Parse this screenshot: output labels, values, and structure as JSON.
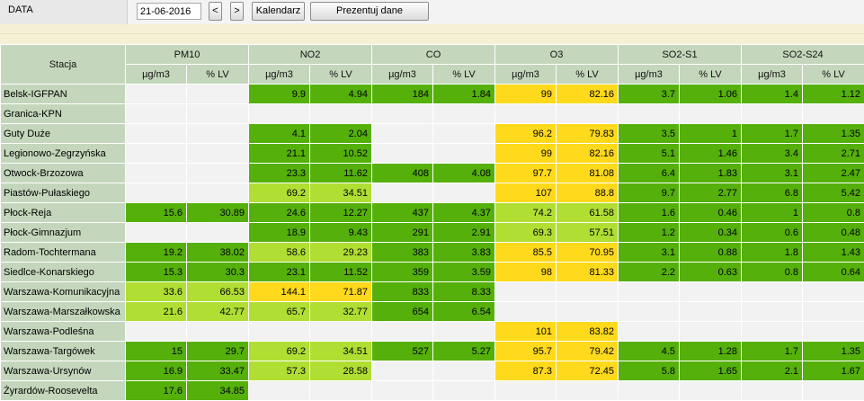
{
  "toolbar": {
    "label": "DATA",
    "date_value": "21-06-2016",
    "prev_label": "<",
    "next_label": ">",
    "calendar_label": "Kalendarz",
    "show_label": "Prezentuj dane"
  },
  "table": {
    "station_header": "Stacja",
    "pollutants": [
      "PM10",
      "NO2",
      "CO",
      "O3",
      "SO2-S1",
      "SO2-S24"
    ],
    "unit_headers": [
      "µg/m3",
      "% LV"
    ],
    "level_colors": {
      "none": "#f2f2f2",
      "very_good": "#55b00b",
      "good": "#b0de33",
      "moderate": "#ffd91b"
    },
    "rows": [
      {
        "station": "Belsk-IGFPAN",
        "values": [
          [
            "",
            ""
          ],
          [
            "9.9",
            "4.94"
          ],
          [
            "184",
            "1.84"
          ],
          [
            "99",
            "82.16"
          ],
          [
            "3.7",
            "1.06"
          ],
          [
            "1.4",
            "1.12"
          ]
        ],
        "levels": [
          0,
          1,
          1,
          3,
          1,
          1
        ]
      },
      {
        "station": "Granica-KPN",
        "values": [
          [
            "",
            ""
          ],
          [
            "",
            ""
          ],
          [
            "",
            ""
          ],
          [
            "",
            ""
          ],
          [
            "",
            ""
          ],
          [
            "",
            ""
          ]
        ],
        "levels": [
          0,
          0,
          0,
          0,
          0,
          0
        ]
      },
      {
        "station": "Guty Duże",
        "values": [
          [
            "",
            ""
          ],
          [
            "4.1",
            "2.04"
          ],
          [
            "",
            ""
          ],
          [
            "96.2",
            "79.83"
          ],
          [
            "3.5",
            "1"
          ],
          [
            "1.7",
            "1.35"
          ]
        ],
        "levels": [
          0,
          1,
          0,
          3,
          1,
          1
        ]
      },
      {
        "station": "Legionowo-Zegrzyńska",
        "values": [
          [
            "",
            ""
          ],
          [
            "21.1",
            "10.52"
          ],
          [
            "",
            ""
          ],
          [
            "99",
            "82.16"
          ],
          [
            "5.1",
            "1.46"
          ],
          [
            "3.4",
            "2.71"
          ]
        ],
        "levels": [
          0,
          1,
          0,
          3,
          1,
          1
        ]
      },
      {
        "station": "Otwock-Brzozowa",
        "values": [
          [
            "",
            ""
          ],
          [
            "23.3",
            "11.62"
          ],
          [
            "408",
            "4.08"
          ],
          [
            "97.7",
            "81.08"
          ],
          [
            "6.4",
            "1.83"
          ],
          [
            "3.1",
            "2.47"
          ]
        ],
        "levels": [
          0,
          1,
          1,
          3,
          1,
          1
        ]
      },
      {
        "station": "Piastów-Pułaskiego",
        "values": [
          [
            "",
            ""
          ],
          [
            "69.2",
            "34.51"
          ],
          [
            "",
            ""
          ],
          [
            "107",
            "88.8"
          ],
          [
            "9.7",
            "2.77"
          ],
          [
            "6.8",
            "5.42"
          ]
        ],
        "levels": [
          0,
          2,
          0,
          3,
          1,
          1
        ]
      },
      {
        "station": "Płock-Reja",
        "values": [
          [
            "15.6",
            "30.89"
          ],
          [
            "24.6",
            "12.27"
          ],
          [
            "437",
            "4.37"
          ],
          [
            "74.2",
            "61.58"
          ],
          [
            "1.6",
            "0.46"
          ],
          [
            "1",
            "0.8"
          ]
        ],
        "levels": [
          1,
          1,
          1,
          2,
          1,
          1
        ]
      },
      {
        "station": "Płock-Gimnazjum",
        "values": [
          [
            "",
            ""
          ],
          [
            "18.9",
            "9.43"
          ],
          [
            "291",
            "2.91"
          ],
          [
            "69.3",
            "57.51"
          ],
          [
            "1.2",
            "0.34"
          ],
          [
            "0.6",
            "0.48"
          ]
        ],
        "levels": [
          0,
          1,
          1,
          2,
          1,
          1
        ]
      },
      {
        "station": "Radom-Tochtermana",
        "values": [
          [
            "19.2",
            "38.02"
          ],
          [
            "58.6",
            "29.23"
          ],
          [
            "383",
            "3.83"
          ],
          [
            "85.5",
            "70.95"
          ],
          [
            "3.1",
            "0.88"
          ],
          [
            "1.8",
            "1.43"
          ]
        ],
        "levels": [
          1,
          2,
          1,
          3,
          1,
          1
        ]
      },
      {
        "station": "Siedlce-Konarskiego",
        "values": [
          [
            "15.3",
            "30.3"
          ],
          [
            "23.1",
            "11.52"
          ],
          [
            "359",
            "3.59"
          ],
          [
            "98",
            "81.33"
          ],
          [
            "2.2",
            "0.63"
          ],
          [
            "0.8",
            "0.64"
          ]
        ],
        "levels": [
          1,
          1,
          1,
          3,
          1,
          1
        ]
      },
      {
        "station": "Warszawa-Komunikacyjna",
        "values": [
          [
            "33.6",
            "66.53"
          ],
          [
            "144.1",
            "71.87"
          ],
          [
            "833",
            "8.33"
          ],
          [
            "",
            ""
          ],
          [
            "",
            ""
          ],
          [
            "",
            ""
          ]
        ],
        "levels": [
          2,
          3,
          1,
          0,
          0,
          0
        ]
      },
      {
        "station": "Warszawa-Marszałkowska",
        "values": [
          [
            "21.6",
            "42.77"
          ],
          [
            "65.7",
            "32.77"
          ],
          [
            "654",
            "6.54"
          ],
          [
            "",
            ""
          ],
          [
            "",
            ""
          ],
          [
            "",
            ""
          ]
        ],
        "levels": [
          2,
          2,
          1,
          0,
          0,
          0
        ]
      },
      {
        "station": "Warszawa-Podleśna",
        "values": [
          [
            "",
            ""
          ],
          [
            "",
            ""
          ],
          [
            "",
            ""
          ],
          [
            "101",
            "83.82"
          ],
          [
            "",
            ""
          ],
          [
            "",
            ""
          ]
        ],
        "levels": [
          0,
          0,
          0,
          3,
          0,
          0
        ]
      },
      {
        "station": "Warszawa-Targówek",
        "values": [
          [
            "15",
            "29.7"
          ],
          [
            "69.2",
            "34.51"
          ],
          [
            "527",
            "5.27"
          ],
          [
            "95.7",
            "79.42"
          ],
          [
            "4.5",
            "1.28"
          ],
          [
            "1.7",
            "1.35"
          ]
        ],
        "levels": [
          1,
          2,
          1,
          3,
          1,
          1
        ]
      },
      {
        "station": "Warszawa-Ursynów",
        "values": [
          [
            "16.9",
            "33.47"
          ],
          [
            "57.3",
            "28.58"
          ],
          [
            "",
            ""
          ],
          [
            "87.3",
            "72.45"
          ],
          [
            "5.8",
            "1.65"
          ],
          [
            "2.1",
            "1.67"
          ]
        ],
        "levels": [
          1,
          2,
          0,
          3,
          1,
          1
        ]
      },
      {
        "station": "Żyrardów-Roosevelta",
        "values": [
          [
            "17.6",
            "34.85"
          ],
          [
            "",
            ""
          ],
          [
            "",
            ""
          ],
          [
            "",
            ""
          ],
          [
            "",
            ""
          ],
          [
            "",
            ""
          ]
        ],
        "levels": [
          1,
          0,
          0,
          0,
          0,
          0
        ]
      }
    ]
  }
}
